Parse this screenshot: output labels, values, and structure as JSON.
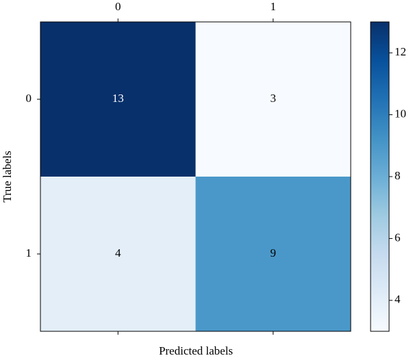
{
  "chart_data": {
    "type": "heatmap",
    "x_categories": [
      "0",
      "1"
    ],
    "y_categories": [
      "0",
      "1"
    ],
    "values": [
      [
        13,
        3
      ],
      [
        4,
        9
      ]
    ],
    "xlabel": "Predicted labels",
    "ylabel": "True labels",
    "x_axis_position": "top",
    "colormap": [
      "#f7fbff",
      "#deebf7",
      "#c6dbef",
      "#9ecae1",
      "#6baed6",
      "#4292c6",
      "#2171b5",
      "#08519c",
      "#08306b"
    ],
    "clim": [
      3,
      13
    ],
    "cticks": [
      4,
      6,
      8,
      10,
      12
    ]
  }
}
